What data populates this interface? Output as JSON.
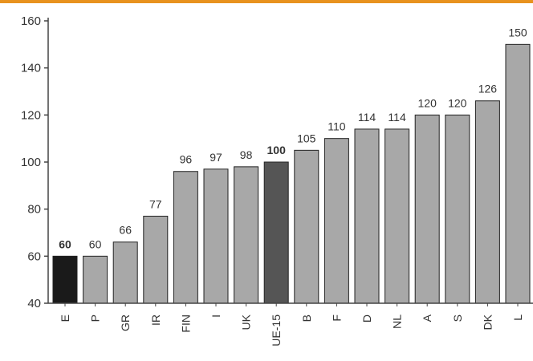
{
  "chart_data": {
    "type": "bar",
    "categories": [
      "E",
      "P",
      "GR",
      "IR",
      "FIN",
      "I",
      "UK",
      "UE-15",
      "B",
      "F",
      "D",
      "NL",
      "A",
      "S",
      "DK",
      "L"
    ],
    "values": [
      60,
      60,
      66,
      77,
      96,
      97,
      98,
      100,
      105,
      110,
      114,
      114,
      120,
      120,
      126,
      150
    ],
    "data_labels": [
      "60",
      "60",
      "66",
      "77",
      "96",
      "97",
      "98",
      "100",
      "105",
      "110",
      "114",
      "114",
      "120",
      "120",
      "126",
      "150"
    ],
    "y_ticks": [
      "40",
      "60",
      "80",
      "100",
      "120",
      "140",
      "160"
    ],
    "ylim": [
      40,
      160
    ],
    "title": "",
    "xlabel": "",
    "ylabel": "",
    "grid": false,
    "legend": "none",
    "highlight": {
      "E": "dark",
      "UE-15": "dark"
    }
  },
  "colors": {
    "top_rule": "#e8921e",
    "bar_default": "#a8a8a8",
    "bar_dark_e": "#1a1a1a",
    "bar_dark_eu": "#555555",
    "bar_stroke": "#222222",
    "axis": "#444444"
  }
}
